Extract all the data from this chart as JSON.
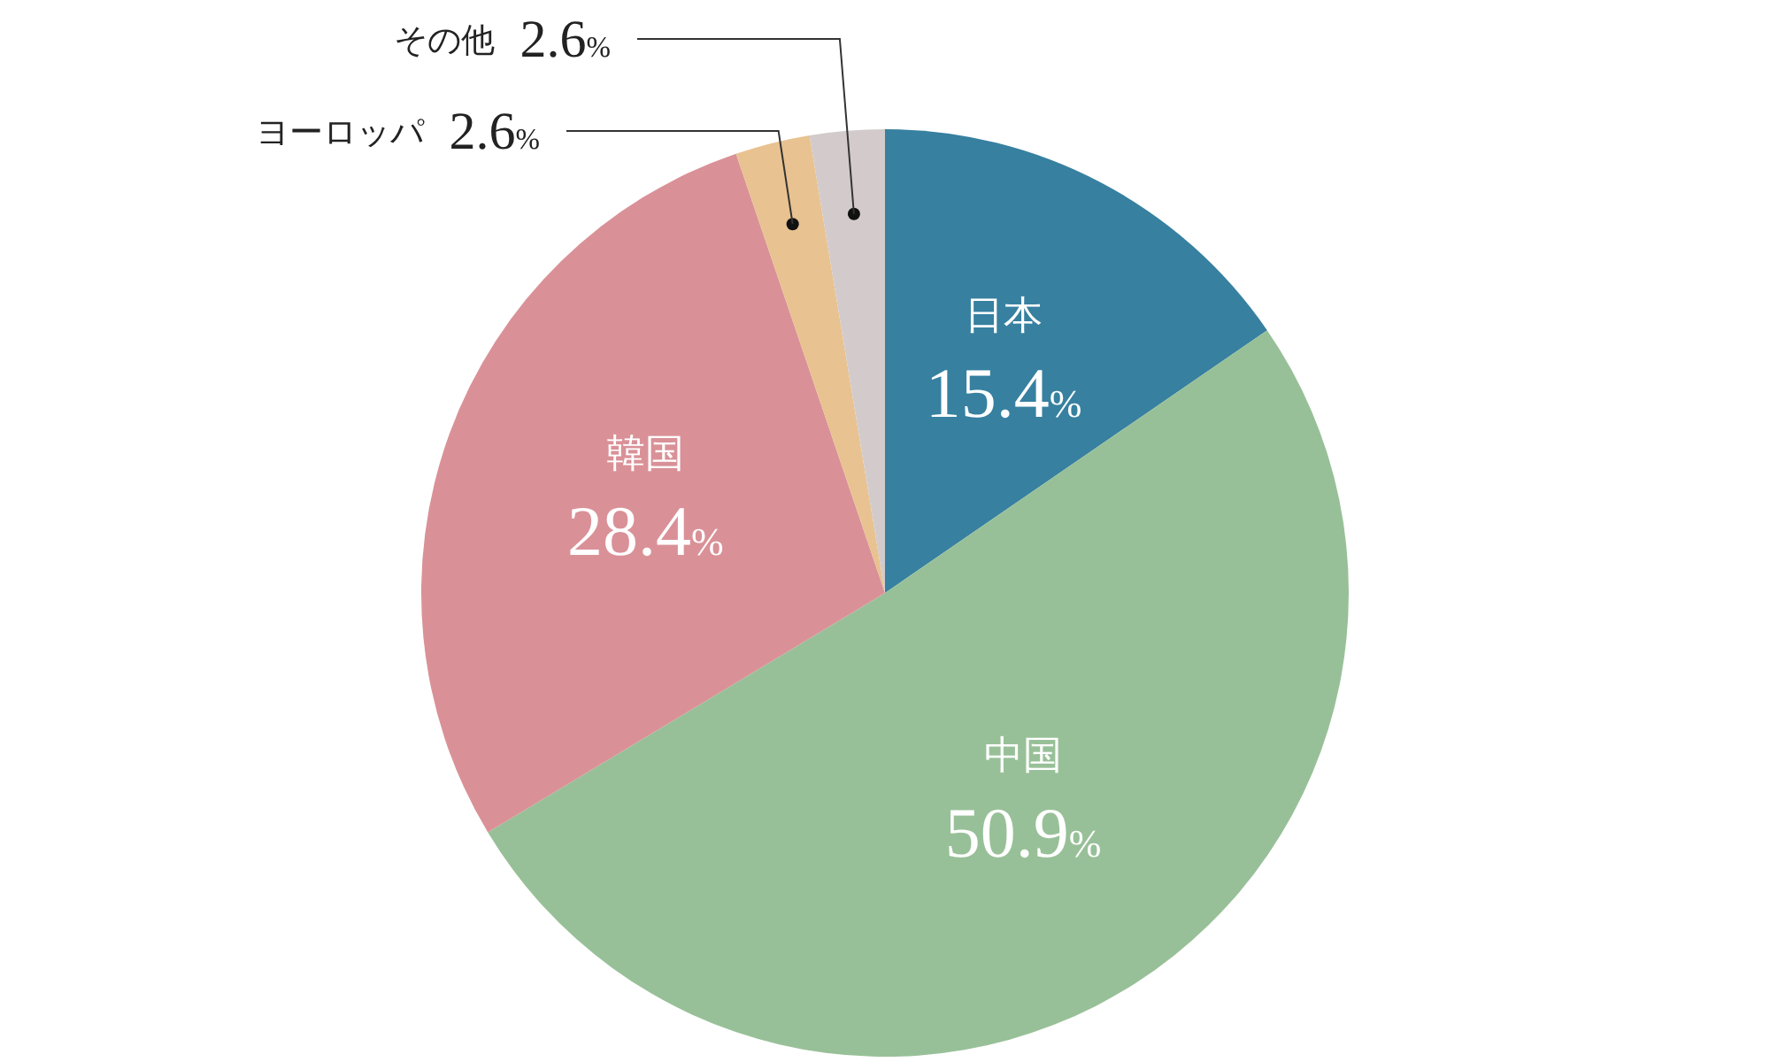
{
  "chart_data": {
    "type": "pie",
    "categories": [
      "日本",
      "中国",
      "韓国",
      "ヨーロッパ",
      "その他"
    ],
    "values": [
      15.4,
      50.9,
      28.4,
      2.6,
      2.6
    ],
    "value_labels": [
      "15.4%",
      "50.9%",
      "28.4%",
      "2.6%",
      "2.6%"
    ],
    "colors": [
      "#3780a0",
      "#98c098",
      "#d99197",
      "#e8c290",
      "#d3cbcb"
    ],
    "legend": false
  }
}
